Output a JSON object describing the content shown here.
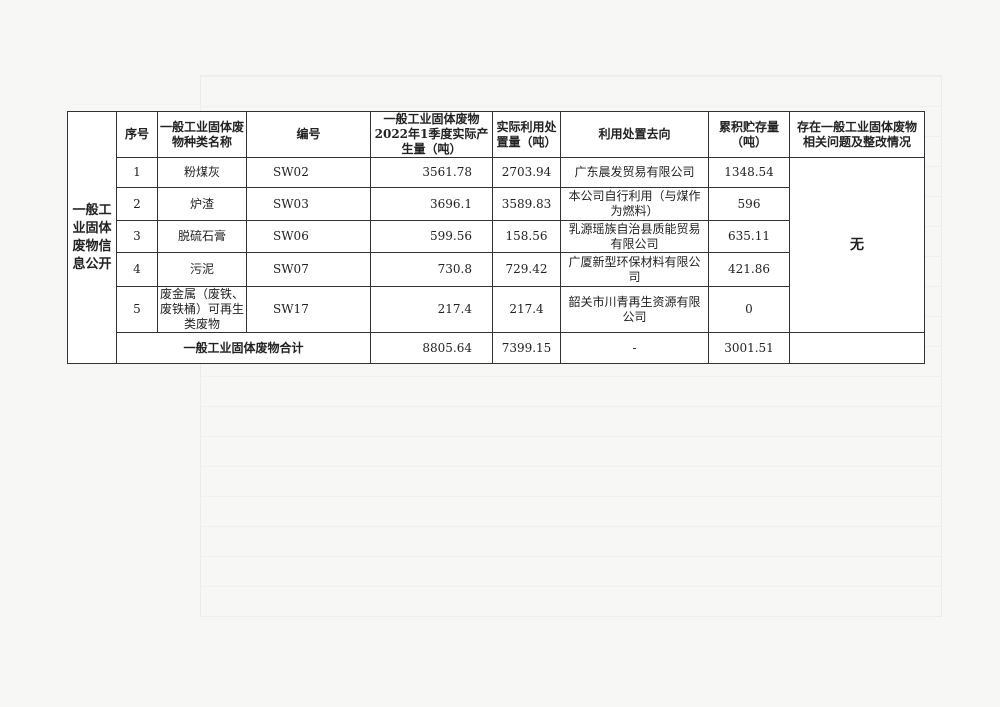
{
  "section_label": "一般工业固体废物信息公开",
  "headers": [
    "序号",
    "一般工业固体废物种类名称",
    "编号",
    "一般工业固体废物2022年1季度实际产生量（吨）",
    "实际利用处置量（吨）",
    "利用处置去向",
    "累积贮存量（吨）",
    "存在一般工业固体废物相关问题及整改情况"
  ],
  "rows": [
    {
      "no": "1",
      "name": "粉煤灰",
      "code": "SW02",
      "produced": "3561.78",
      "disposed": "2703.94",
      "destination": "广东晨发贸易有限公司",
      "stored": "1348.54"
    },
    {
      "no": "2",
      "name": "炉渣",
      "code": "SW03",
      "produced": "3696.1",
      "disposed": "3589.83",
      "destination": "本公司自行利用（与煤作为燃料）",
      "stored": "596"
    },
    {
      "no": "3",
      "name": "脱硫石膏",
      "code": "SW06",
      "produced": "599.56",
      "disposed": "158.56",
      "destination": "乳源瑶族自治县质能贸易有限公司",
      "stored": "635.11"
    },
    {
      "no": "4",
      "name": "污泥",
      "code": "SW07",
      "produced": "730.8",
      "disposed": "729.42",
      "destination": "广厦新型环保材料有限公司",
      "stored": "421.86"
    },
    {
      "no": "5",
      "name": "废金属（废铁、废铁桶）可再生类废物",
      "code": "SW17",
      "produced": "217.4",
      "disposed": "217.4",
      "destination": "韶关市川青再生资源有限公司",
      "stored": "0"
    }
  ],
  "issues": "无",
  "total": {
    "label": "一般工业固体废物合计",
    "produced": "8805.64",
    "disposed": "7399.15",
    "destination": "-",
    "stored": "3001.51"
  }
}
